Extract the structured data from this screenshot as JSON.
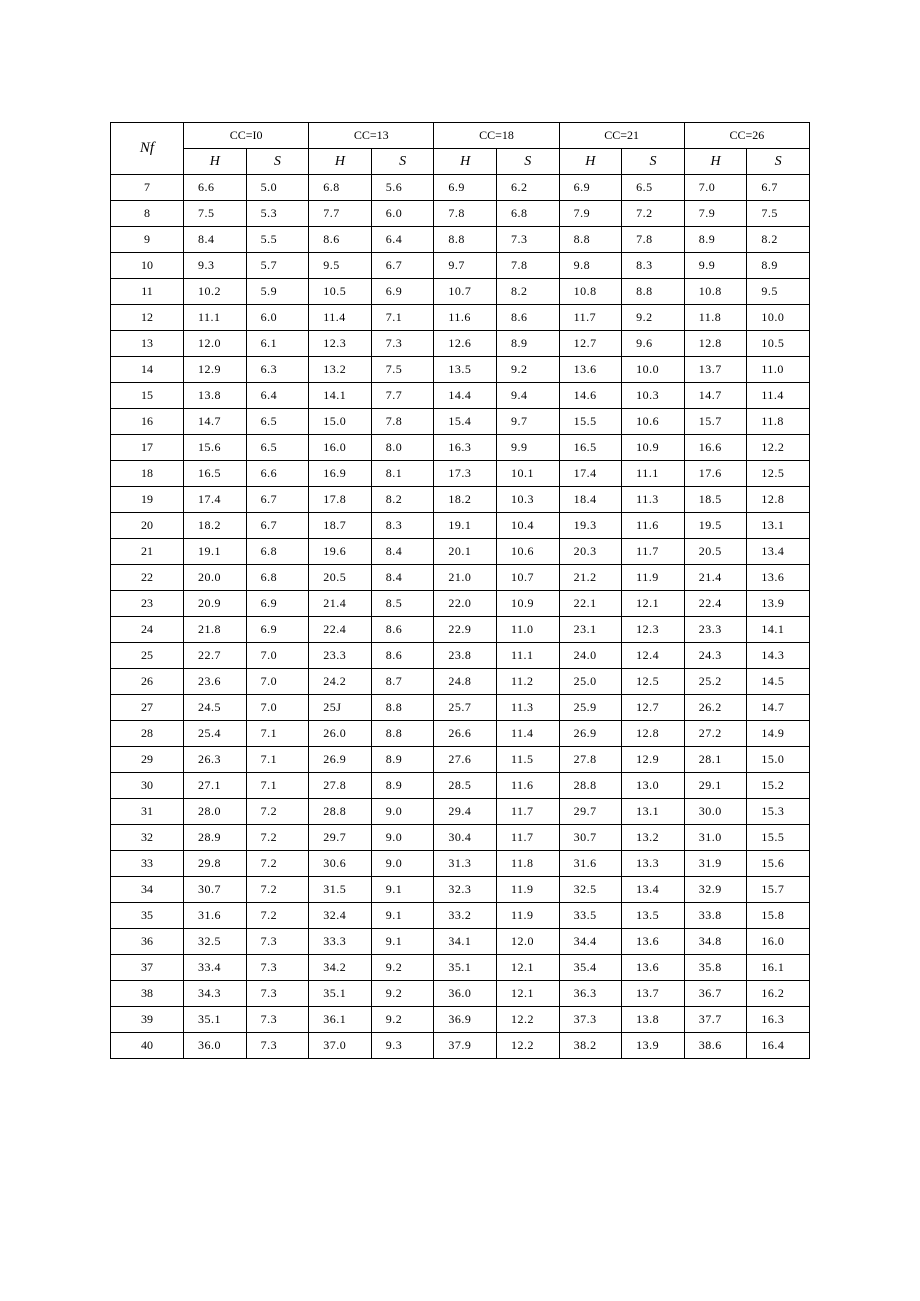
{
  "table": {
    "nf_label": "Nf",
    "sub_headers": {
      "H": "H",
      "S": "S"
    },
    "column_groups": [
      {
        "label": "CC=I0"
      },
      {
        "label": "CC=13"
      },
      {
        "label": "CC=18"
      },
      {
        "label": "CC=21"
      },
      {
        "label": "CC=26"
      }
    ],
    "rows": [
      {
        "nf": "7",
        "v": [
          "6.6",
          "5.0",
          "6.8",
          "5.6",
          "6.9",
          "6.2",
          "6.9",
          "6.5",
          "7.0",
          "6.7"
        ]
      },
      {
        "nf": "8",
        "v": [
          "7.5",
          "5.3",
          "7.7",
          "6.0",
          "7.8",
          "6.8",
          "7.9",
          "7.2",
          "7.9",
          "7.5"
        ]
      },
      {
        "nf": "9",
        "v": [
          "8.4",
          "5.5",
          "8.6",
          "6.4",
          "8.8",
          "7.3",
          "8.8",
          "7.8",
          "8.9",
          "8.2"
        ]
      },
      {
        "nf": "10",
        "v": [
          "9.3",
          "5.7",
          "9.5",
          "6.7",
          "9.7",
          "7.8",
          "9.8",
          "8.3",
          "9.9",
          "8.9"
        ]
      },
      {
        "nf": "11",
        "v": [
          "10.2",
          "5.9",
          "10.5",
          "6.9",
          "10.7",
          "8.2",
          "10.8",
          "8.8",
          "10.8",
          "9.5"
        ]
      },
      {
        "nf": "12",
        "v": [
          "11.1",
          "6.0",
          "11.4",
          "7.1",
          "11.6",
          "8.6",
          "11.7",
          "9.2",
          "11.8",
          "10.0"
        ]
      },
      {
        "nf": "13",
        "v": [
          "12.0",
          "6.1",
          "12.3",
          "7.3",
          "12.6",
          "8.9",
          "12.7",
          "9.6",
          "12.8",
          "10.5"
        ]
      },
      {
        "nf": "14",
        "v": [
          "12.9",
          "6.3",
          "13.2",
          "7.5",
          "13.5",
          "9.2",
          "13.6",
          "10.0",
          "13.7",
          "11.0"
        ]
      },
      {
        "nf": "15",
        "v": [
          "13.8",
          "6.4",
          "14.1",
          "7.7",
          "14.4",
          "9.4",
          "14.6",
          "10.3",
          "14.7",
          "11.4"
        ]
      },
      {
        "nf": "16",
        "v": [
          "14.7",
          "6.5",
          "15.0",
          "7.8",
          "15.4",
          "9.7",
          "15.5",
          "10.6",
          "15.7",
          "11.8"
        ]
      },
      {
        "nf": "17",
        "v": [
          "15.6",
          "6.5",
          "16.0",
          "8.0",
          "16.3",
          "9.9",
          "16.5",
          "10.9",
          "16.6",
          "12.2"
        ]
      },
      {
        "nf": "18",
        "v": [
          "16.5",
          "6.6",
          "16.9",
          "8.1",
          "17.3",
          "10.1",
          "17.4",
          "11.1",
          "17.6",
          "12.5"
        ]
      },
      {
        "nf": "19",
        "v": [
          "17.4",
          "6.7",
          "17.8",
          "8.2",
          "18.2",
          "10.3",
          "18.4",
          "11.3",
          "18.5",
          "12.8"
        ]
      },
      {
        "nf": "20",
        "v": [
          "18.2",
          "6.7",
          "18.7",
          "8.3",
          "19.1",
          "10.4",
          "19.3",
          "11.6",
          "19.5",
          "13.1"
        ]
      },
      {
        "nf": "21",
        "v": [
          "19.1",
          "6.8",
          "19.6",
          "8.4",
          "20.1",
          "10.6",
          "20.3",
          "11.7",
          "20.5",
          "13.4"
        ]
      },
      {
        "nf": "22",
        "v": [
          "20.0",
          "6.8",
          "20.5",
          "8.4",
          "21.0",
          "10.7",
          "21.2",
          "11.9",
          "21.4",
          "13.6"
        ]
      },
      {
        "nf": "23",
        "v": [
          "20.9",
          "6.9",
          "21.4",
          "8.5",
          "22.0",
          "10.9",
          "22.1",
          "12.1",
          "22.4",
          "13.9"
        ]
      },
      {
        "nf": "24",
        "v": [
          "21.8",
          "6.9",
          "22.4",
          "8.6",
          "22.9",
          "11.0",
          "23.1",
          "12.3",
          "23.3",
          "14.1"
        ]
      },
      {
        "nf": "25",
        "v": [
          "22.7",
          "7.0",
          "23.3",
          "8.6",
          "23.8",
          "11.1",
          "24.0",
          "12.4",
          "24.3",
          "14.3"
        ]
      },
      {
        "nf": "26",
        "v": [
          "23.6",
          "7.0",
          "24.2",
          "8.7",
          "24.8",
          "11.2",
          "25.0",
          "12.5",
          "25.2",
          "14.5"
        ]
      },
      {
        "nf": "27",
        "v": [
          "24.5",
          "7.0",
          "25J",
          "8.8",
          "25.7",
          "11.3",
          "25.9",
          "12.7",
          "26.2",
          "14.7"
        ]
      },
      {
        "nf": "28",
        "v": [
          "25.4",
          "7.1",
          "26.0",
          "8.8",
          "26.6",
          "11.4",
          "26.9",
          "12.8",
          "27.2",
          "14.9"
        ]
      },
      {
        "nf": "29",
        "v": [
          "26.3",
          "7.1",
          "26.9",
          "8.9",
          "27.6",
          "11.5",
          "27.8",
          "12.9",
          "28.1",
          "15.0"
        ]
      },
      {
        "nf": "30",
        "v": [
          "27.1",
          "7.1",
          "27.8",
          "8.9",
          "28.5",
          "11.6",
          "28.8",
          "13.0",
          "29.1",
          "15.2"
        ]
      },
      {
        "nf": "31",
        "v": [
          "28.0",
          "7.2",
          "28.8",
          "9.0",
          "29.4",
          "11.7",
          "29.7",
          "13.1",
          "30.0",
          "15.3"
        ]
      },
      {
        "nf": "32",
        "v": [
          "28.9",
          "7.2",
          "29.7",
          "9.0",
          "30.4",
          "11.7",
          "30.7",
          "13.2",
          "31.0",
          "15.5"
        ]
      },
      {
        "nf": "33",
        "v": [
          "29.8",
          "7.2",
          "30.6",
          "9.0",
          "31.3",
          "11.8",
          "31.6",
          "13.3",
          "31.9",
          "15.6"
        ]
      },
      {
        "nf": "34",
        "v": [
          "30.7",
          "7.2",
          "31.5",
          "9.1",
          "32.3",
          "11.9",
          "32.5",
          "13.4",
          "32.9",
          "15.7"
        ]
      },
      {
        "nf": "35",
        "v": [
          "31.6",
          "7.2",
          "32.4",
          "9.1",
          "33.2",
          "11.9",
          "33.5",
          "13.5",
          "33.8",
          "15.8"
        ]
      },
      {
        "nf": "36",
        "v": [
          "32.5",
          "7.3",
          "33.3",
          "9.1",
          "34.1",
          "12.0",
          "34.4",
          "13.6",
          "34.8",
          "16.0"
        ]
      },
      {
        "nf": "37",
        "v": [
          "33.4",
          "7.3",
          "34.2",
          "9.2",
          "35.1",
          "12.1",
          "35.4",
          "13.6",
          "35.8",
          "16.1"
        ]
      },
      {
        "nf": "38",
        "v": [
          "34.3",
          "7.3",
          "35.1",
          "9.2",
          "36.0",
          "12.1",
          "36.3",
          "13.7",
          "36.7",
          "16.2"
        ]
      },
      {
        "nf": "39",
        "v": [
          "35.1",
          "7.3",
          "36.1",
          "9.2",
          "36.9",
          "12.2",
          "37.3",
          "13.8",
          "37.7",
          "16.3"
        ]
      },
      {
        "nf": "40",
        "v": [
          "36.0",
          "7.3",
          "37.0",
          "9.3",
          "37.9",
          "12.2",
          "38.2",
          "13.9",
          "38.6",
          "16.4"
        ]
      }
    ]
  }
}
